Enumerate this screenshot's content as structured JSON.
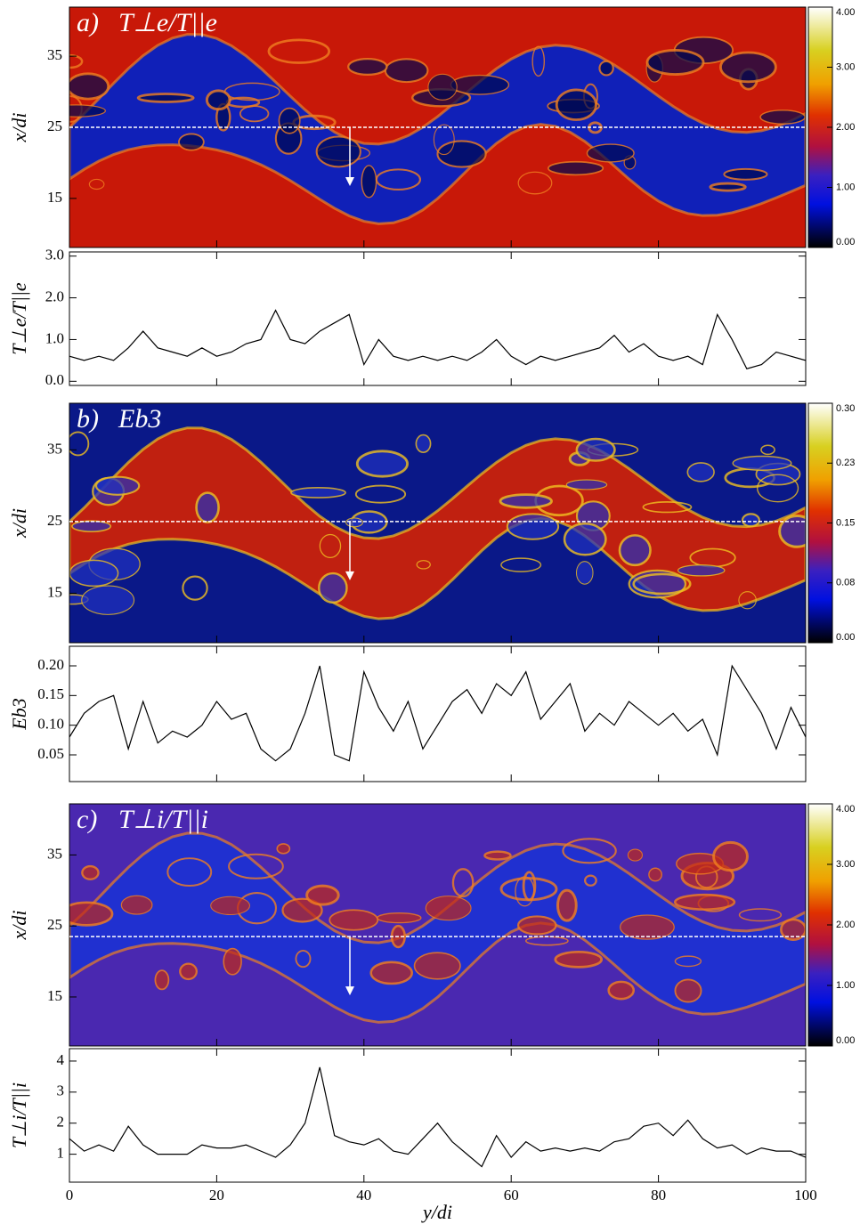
{
  "chart_data": [
    {
      "type": "heatmap",
      "label": "a)",
      "title": "T⊥e/T||e",
      "ylabel": "x/di",
      "xlim": [
        0,
        100
      ],
      "ylim": [
        8.1,
        41.9
      ],
      "yticks": [
        15,
        25,
        35
      ],
      "cut": 25,
      "colorbar": {
        "lim": [
          0,
          4
        ],
        "ticks": [
          {
            "value": 0,
            "label": "0.00"
          },
          {
            "value": 1,
            "label": "1.00"
          },
          {
            "value": 2,
            "label": "2.00"
          },
          {
            "value": 3,
            "label": "3.00"
          },
          {
            "value": 4,
            "label": "4.00"
          }
        ]
      }
    },
    {
      "type": "line",
      "ylabel": "T⊥e/T||e",
      "xlim": [
        0,
        100
      ],
      "ylim": [
        -0.1,
        3.1
      ],
      "yticks": [
        {
          "value": 0,
          "label": "0.0"
        },
        {
          "value": 1,
          "label": "1.0"
        },
        {
          "value": 2,
          "label": "2.0"
        },
        {
          "value": 3,
          "label": "3.0"
        }
      ],
      "x": [
        0,
        2,
        4,
        6,
        8,
        10,
        12,
        14,
        16,
        18,
        20,
        22,
        24,
        26,
        28,
        30,
        32,
        34,
        36,
        38,
        40,
        42,
        44,
        46,
        48,
        50,
        52,
        54,
        56,
        58,
        60,
        62,
        64,
        66,
        68,
        70,
        72,
        74,
        76,
        78,
        80,
        82,
        84,
        86,
        88,
        90,
        92,
        94,
        96,
        98,
        100
      ],
      "series": [
        {
          "color": "#000000",
          "values": [
            0.6,
            0.5,
            0.6,
            0.5,
            0.8,
            1.2,
            0.8,
            0.7,
            0.6,
            0.8,
            0.6,
            0.7,
            0.9,
            1.0,
            1.7,
            1.0,
            0.9,
            1.2,
            1.4,
            1.6,
            0.4,
            1.0,
            0.6,
            0.5,
            0.6,
            0.5,
            0.6,
            0.5,
            0.7,
            1.0,
            0.6,
            0.4,
            0.6,
            0.5,
            0.6,
            0.7,
            0.8,
            1.1,
            0.7,
            0.9,
            0.6,
            0.5,
            0.6,
            0.4,
            1.6,
            1.0,
            0.3,
            0.4,
            0.7,
            0.6,
            0.5
          ]
        }
      ]
    },
    {
      "type": "heatmap",
      "label": "b)",
      "title": "Eb3",
      "ylabel": "x/di",
      "xlim": [
        0,
        100
      ],
      "ylim": [
        8.1,
        41.5
      ],
      "yticks": [
        15,
        25,
        35
      ],
      "cut": 25,
      "colorbar": {
        "lim": [
          0,
          0.3
        ],
        "ticks": [
          {
            "value": 0,
            "label": "0.00"
          },
          {
            "value": 0.075,
            "label": "0.08"
          },
          {
            "value": 0.15,
            "label": "0.15"
          },
          {
            "value": 0.225,
            "label": "0.23"
          },
          {
            "value": 0.3,
            "label": "0.30"
          }
        ]
      }
    },
    {
      "type": "line",
      "ylabel": "Eb3",
      "xlim": [
        0,
        100
      ],
      "ylim": [
        0.005,
        0.233
      ],
      "yticks": [
        0.05,
        {
          "value": 0.1,
          "label": "0.10"
        },
        0.15,
        {
          "value": 0.2,
          "label": "0.20"
        }
      ],
      "x": [
        0,
        2,
        4,
        6,
        8,
        10,
        12,
        14,
        16,
        18,
        20,
        22,
        24,
        26,
        28,
        30,
        32,
        34,
        36,
        38,
        40,
        42,
        44,
        46,
        48,
        50,
        52,
        54,
        56,
        58,
        60,
        62,
        64,
        66,
        68,
        70,
        72,
        74,
        76,
        78,
        80,
        82,
        84,
        86,
        88,
        90,
        92,
        94,
        96,
        98,
        100
      ],
      "series": [
        {
          "color": "#000000",
          "values": [
            0.08,
            0.12,
            0.14,
            0.15,
            0.06,
            0.14,
            0.07,
            0.09,
            0.08,
            0.1,
            0.14,
            0.11,
            0.12,
            0.06,
            0.04,
            0.06,
            0.12,
            0.2,
            0.05,
            0.04,
            0.19,
            0.13,
            0.09,
            0.14,
            0.06,
            0.1,
            0.14,
            0.16,
            0.12,
            0.17,
            0.15,
            0.19,
            0.11,
            0.14,
            0.17,
            0.09,
            0.12,
            0.1,
            0.14,
            0.12,
            0.1,
            0.12,
            0.09,
            0.11,
            0.05,
            0.2,
            0.16,
            0.12,
            0.06,
            0.13,
            0.08
          ]
        }
      ]
    },
    {
      "type": "heatmap",
      "label": "c)",
      "title": "T⊥i/T||i",
      "ylabel": "x/di",
      "xlim": [
        0,
        100
      ],
      "ylim": [
        8.1,
        42.2
      ],
      "yticks": [
        15,
        25,
        35
      ],
      "cut": 23.5,
      "colorbar": {
        "lim": [
          0,
          4
        ],
        "ticks": [
          {
            "value": 0,
            "label": "0.00"
          },
          {
            "value": 1,
            "label": "1.00"
          },
          {
            "value": 2,
            "label": "2.00"
          },
          {
            "value": 3,
            "label": "3.00"
          },
          {
            "value": 4,
            "label": "4.00"
          }
        ]
      }
    },
    {
      "type": "line",
      "ylabel": "T⊥i/T||i",
      "xlabel": "y/di",
      "xlim": [
        0,
        100
      ],
      "ylim": [
        0.1,
        4.4
      ],
      "yticks": [
        1,
        2,
        3,
        4
      ],
      "xticks": [
        0,
        20,
        40,
        60,
        80,
        100
      ],
      "x": [
        0,
        2,
        4,
        6,
        8,
        10,
        12,
        14,
        16,
        18,
        20,
        22,
        24,
        26,
        28,
        30,
        32,
        34,
        36,
        38,
        40,
        42,
        44,
        46,
        48,
        50,
        52,
        54,
        56,
        58,
        60,
        62,
        64,
        66,
        68,
        70,
        72,
        74,
        76,
        78,
        80,
        82,
        84,
        86,
        88,
        90,
        92,
        94,
        96,
        98,
        100
      ],
      "series": [
        {
          "color": "#000000",
          "values": [
            1.5,
            1.1,
            1.3,
            1.1,
            1.9,
            1.3,
            1.0,
            1.0,
            1.0,
            1.3,
            1.2,
            1.2,
            1.3,
            1.1,
            0.9,
            1.3,
            2.0,
            3.8,
            1.6,
            1.4,
            1.3,
            1.5,
            1.1,
            1.0,
            1.5,
            2.0,
            1.4,
            1.0,
            0.6,
            1.6,
            0.9,
            1.4,
            1.1,
            1.2,
            1.1,
            1.2,
            1.1,
            1.4,
            1.5,
            1.9,
            2.0,
            1.6,
            2.1,
            1.5,
            1.2,
            1.3,
            1.0,
            1.2,
            1.1,
            1.1,
            0.9
          ]
        }
      ]
    }
  ]
}
